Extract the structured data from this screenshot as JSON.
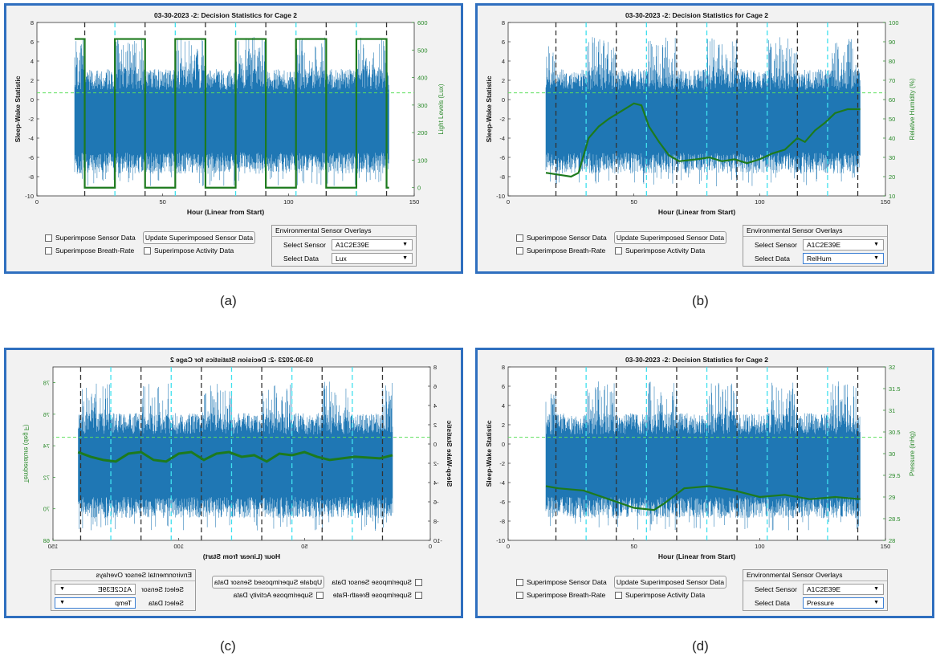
{
  "panels": [
    {
      "id": "a",
      "caption": "(a)",
      "title": "03-30-2023 -2: Decision Statistics for Cage 2",
      "xlabel": "Hour (Linear from Start)",
      "ylabel": "Sleep-Wake Statistic",
      "right_label": "Light Levels (Lux)",
      "left_ticks": [
        "8",
        "6",
        "4",
        "2",
        "0",
        "-2",
        "-4",
        "-6",
        "-8",
        "-10"
      ],
      "right_ticks": [
        "600",
        "500",
        "400",
        "300",
        "200",
        "100",
        "0"
      ],
      "x_ticks": [
        "0",
        "50",
        "100",
        "150"
      ],
      "overlay": "lux",
      "mirrored": false,
      "controls": {
        "superimpose_sensor": "Superimpose Sensor Data",
        "superimpose_breath": "Superimpose Breath-Rate",
        "update_button": "Update Superimposed Sensor Data",
        "superimpose_activity": "Superimpose Activity Data",
        "group_title": "Environmental Sensor Overlays",
        "select_sensor_label": "Select Sensor",
        "select_sensor_value": "A1C2E39E",
        "select_data_label": "Select Data",
        "select_data_value": "Lux"
      }
    },
    {
      "id": "b",
      "caption": "(b)",
      "title": "03-30-2023 -2: Decision Statistics for Cage 2",
      "xlabel": "Hour (Linear from Start)",
      "ylabel": "Sleep-Wake Statistic",
      "right_label": "Relative Humidity (%)",
      "left_ticks": [
        "8",
        "6",
        "4",
        "2",
        "0",
        "-2",
        "-4",
        "-6",
        "-8",
        "-10"
      ],
      "right_ticks": [
        "100",
        "90",
        "80",
        "70",
        "60",
        "50",
        "40",
        "30",
        "20",
        "10"
      ],
      "x_ticks": [
        "0",
        "50",
        "100",
        "150"
      ],
      "overlay": "humidity",
      "mirrored": false,
      "controls": {
        "superimpose_sensor": "Superimpose Sensor Data",
        "superimpose_breath": "Superimpose Breath-Rate",
        "update_button": "Update Superimposed Sensor Data",
        "superimpose_activity": "Superimpose Activity Data",
        "group_title": "Environmental Sensor Overlays",
        "select_sensor_label": "Select Sensor",
        "select_sensor_value": "A1C2E39E",
        "select_data_label": "Select Data",
        "select_data_value": "RelHum"
      }
    },
    {
      "id": "c",
      "caption": "(c)",
      "title": "03-30-2023 -2: Decision Statistics for Cage 2",
      "xlabel": "Hour (Linear from Start)",
      "ylabel": "Sleep-Wake Statistic",
      "right_label": "Temperature (deg F)",
      "left_ticks": [
        "8",
        "6",
        "4",
        "2",
        "0",
        "-2",
        "-4",
        "-6",
        "-8",
        "-10"
      ],
      "right_ticks": [
        "78",
        "76",
        "74",
        "72",
        "70",
        "68"
      ],
      "x_ticks": [
        "0",
        "50",
        "100",
        "150"
      ],
      "overlay": "temp",
      "mirrored": true,
      "controls": {
        "superimpose_sensor": "Superimpose Sensor Data",
        "superimpose_breath": "Superimpose Breath-Rate",
        "update_button": "Update Superimposed Sensor Data",
        "superimpose_activity": "Superimpose Activity Data",
        "group_title": "Environmental Sensor Overlays",
        "select_sensor_label": "Select Sensor",
        "select_sensor_value": "A1C2E39E",
        "select_data_label": "Select Data",
        "select_data_value": "Temp"
      }
    },
    {
      "id": "d",
      "caption": "(d)",
      "title": "03-30-2023 -2: Decision Statistics for Cage 2",
      "xlabel": "Hour (Linear from Start)",
      "ylabel": "Sleep-Wake Statistic",
      "right_label": "Pressure (inHg)",
      "left_ticks": [
        "8",
        "6",
        "4",
        "2",
        "0",
        "-2",
        "-4",
        "-6",
        "-8",
        "-10"
      ],
      "right_ticks": [
        "32",
        "31.5",
        "31",
        "30.5",
        "30",
        "29.5",
        "29",
        "28.5",
        "28"
      ],
      "x_ticks": [
        "0",
        "50",
        "100",
        "150"
      ],
      "overlay": "pressure",
      "mirrored": false,
      "controls": {
        "superimpose_sensor": "Superimpose Sensor Data",
        "superimpose_breath": "Superimpose Breath-Rate",
        "update_button": "Update Superimposed Sensor Data",
        "superimpose_activity": "Superimpose Activity Data",
        "group_title": "Environmental Sensor Overlays",
        "select_sensor_label": "Select Sensor",
        "select_sensor_value": "A1C2E39E",
        "select_data_label": "Select Data",
        "select_data_value": "Pressure"
      }
    }
  ],
  "chart_data": {
    "type": "line",
    "x_range": [
      0,
      150
    ],
    "left_ylim": [
      -10,
      8
    ],
    "threshold": 0.7,
    "data_x_range": [
      15,
      140
    ],
    "black_dashed_hours": [
      19,
      43,
      67,
      91,
      115,
      139
    ],
    "cyan_dashed_hours": [
      31,
      55,
      79,
      103,
      127
    ],
    "overlays": {
      "lux": {
        "ylim": [
          -30,
          600
        ],
        "dark_level": 0,
        "light_level": 540,
        "transitions": [
          19,
          31,
          43,
          55,
          67,
          79,
          91,
          103,
          115,
          127,
          139
        ]
      },
      "humidity": {
        "ylim": [
          10,
          100
        ],
        "x": [
          15,
          20,
          25,
          28,
          32,
          36,
          40,
          45,
          50,
          53,
          56,
          60,
          64,
          68,
          75,
          80,
          85,
          90,
          95,
          100,
          105,
          110,
          115,
          118,
          122,
          126,
          130,
          135,
          140
        ],
        "y": [
          22,
          21,
          20,
          22,
          40,
          46,
          50,
          54,
          58,
          57,
          46,
          38,
          31,
          28,
          29,
          30,
          28,
          29,
          27,
          29,
          32,
          34,
          40,
          38,
          44,
          48,
          53,
          55,
          55
        ]
      },
      "temp": {
        "ylim": [
          68,
          79
        ],
        "x": [
          15,
          20,
          30,
          40,
          45,
          50,
          55,
          60,
          65,
          70,
          75,
          80,
          85,
          90,
          95,
          100,
          105,
          110,
          115,
          120,
          125,
          130,
          135,
          140
        ],
        "y": [
          73.4,
          73.2,
          73.3,
          73.1,
          73.3,
          73.6,
          73.4,
          73.5,
          73.0,
          73.4,
          73.3,
          73.6,
          73.5,
          73.1,
          73.6,
          73.5,
          73.0,
          73.1,
          73.6,
          73.5,
          73.0,
          73.1,
          73.3,
          73.6
        ]
      },
      "pressure": {
        "ylim": [
          28,
          32
        ],
        "x": [
          15,
          20,
          30,
          40,
          50,
          58,
          62,
          70,
          80,
          90,
          100,
          110,
          120,
          130,
          140
        ],
        "y": [
          29.25,
          29.2,
          29.15,
          28.95,
          28.75,
          28.7,
          28.85,
          29.2,
          29.25,
          29.15,
          29.0,
          29.05,
          28.95,
          29.0,
          28.95
        ]
      }
    }
  }
}
